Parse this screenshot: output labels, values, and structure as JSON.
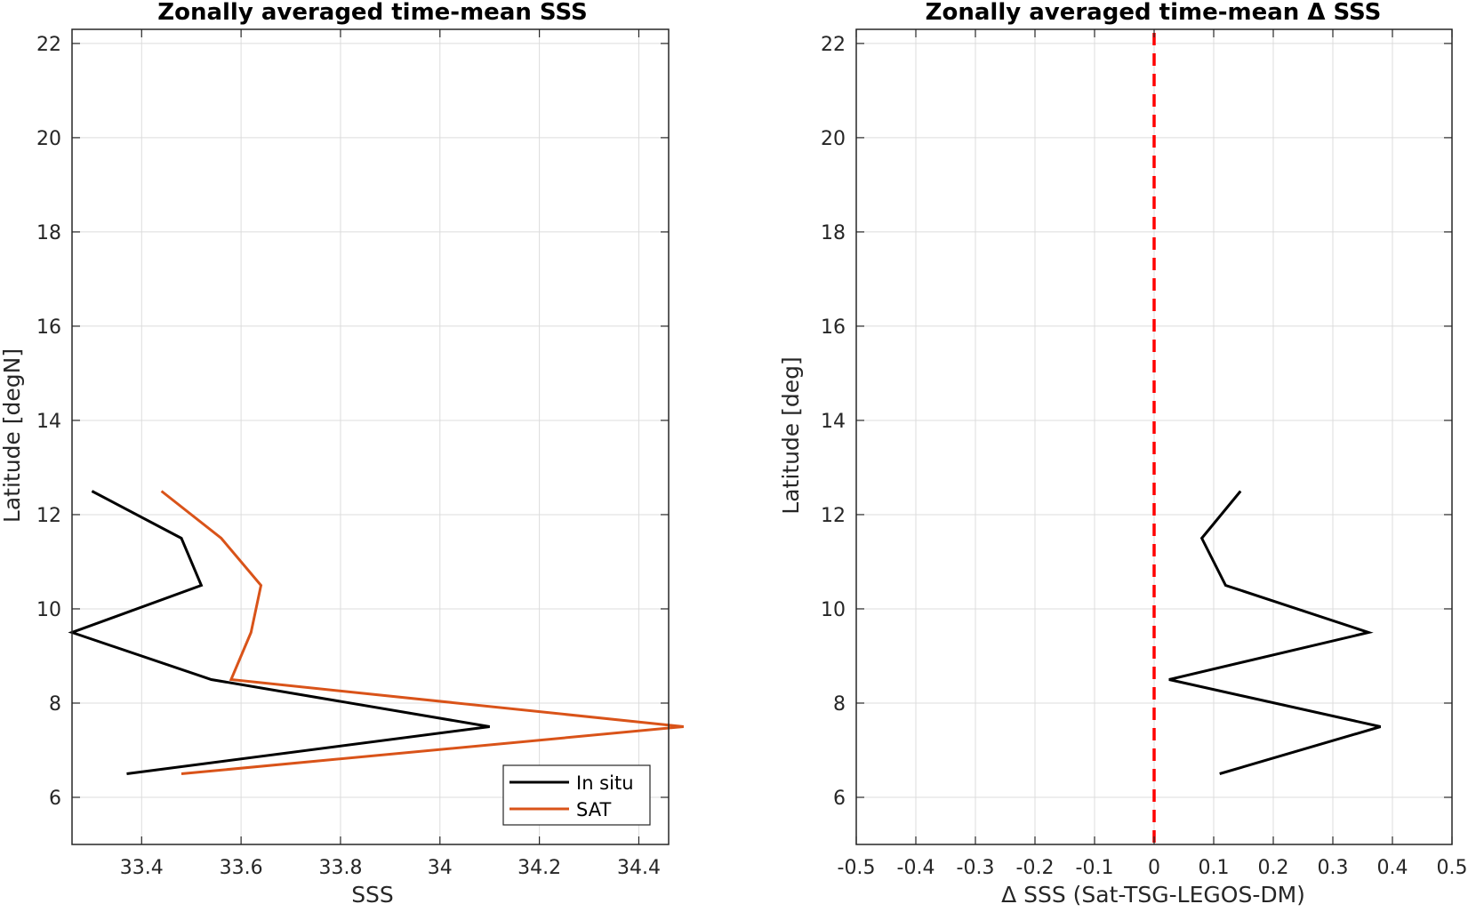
{
  "chart_data": [
    {
      "type": "line",
      "title": "Zonally averaged time-mean SSS",
      "xlabel": "SSS",
      "ylabel": "Latitude [degN]",
      "xlim": [
        33.26,
        34.46
      ],
      "ylim": [
        5,
        22.3
      ],
      "xticks": [
        33.4,
        33.6,
        33.8,
        34,
        34.2,
        34.4
      ],
      "xtick_labels": [
        "33.4",
        "33.6",
        "33.8",
        "34",
        "34.2",
        "34.4"
      ],
      "yticks": [
        6,
        8,
        10,
        12,
        14,
        16,
        18,
        20,
        22
      ],
      "ytick_labels": [
        "6",
        "8",
        "10",
        "12",
        "14",
        "16",
        "18",
        "20",
        "22"
      ],
      "grid": true,
      "legend": "bottom-right",
      "series": [
        {
          "name": "In situ",
          "color": "#000000",
          "points": [
            [
              33.3,
              12.5
            ],
            [
              33.48,
              11.5
            ],
            [
              33.52,
              10.5
            ],
            [
              33.26,
              9.5
            ],
            [
              33.54,
              8.5
            ],
            [
              34.1,
              7.5
            ],
            [
              33.37,
              6.5
            ]
          ]
        },
        {
          "name": "SAT",
          "color": "#d95319",
          "points": [
            [
              33.44,
              12.5
            ],
            [
              33.56,
              11.5
            ],
            [
              33.64,
              10.5
            ],
            [
              33.62,
              9.5
            ],
            [
              33.58,
              8.5
            ],
            [
              34.49,
              7.5
            ],
            [
              33.48,
              6.5
            ]
          ]
        }
      ]
    },
    {
      "type": "line",
      "title": "Zonally averaged time-mean Δ SSS",
      "xlabel": "Δ SSS (Sat-TSG-LEGOS-DM)",
      "ylabel": "Latitude [deg]",
      "xlim": [
        -0.5,
        0.5
      ],
      "ylim": [
        5,
        22.3
      ],
      "xticks": [
        -0.5,
        -0.4,
        -0.3,
        -0.2,
        -0.1,
        0,
        0.1,
        0.2,
        0.3,
        0.4,
        0.5
      ],
      "xtick_labels": [
        "-0.5",
        "-0.4",
        "-0.3",
        "-0.2",
        "-0.1",
        "0",
        "0.1",
        "0.2",
        "0.3",
        "0.4",
        "0.5"
      ],
      "yticks": [
        6,
        8,
        10,
        12,
        14,
        16,
        18,
        20,
        22
      ],
      "ytick_labels": [
        "6",
        "8",
        "10",
        "12",
        "14",
        "16",
        "18",
        "20",
        "22"
      ],
      "grid": true,
      "reference_line": {
        "x": 0,
        "color": "#ff0000",
        "style": "dashed"
      },
      "series": [
        {
          "color": "#000000",
          "points": [
            [
              0.145,
              12.5
            ],
            [
              0.08,
              11.5
            ],
            [
              0.12,
              10.5
            ],
            [
              0.36,
              9.5
            ],
            [
              0.025,
              8.5
            ],
            [
              0.38,
              7.5
            ],
            [
              0.11,
              6.5
            ]
          ]
        }
      ]
    }
  ]
}
